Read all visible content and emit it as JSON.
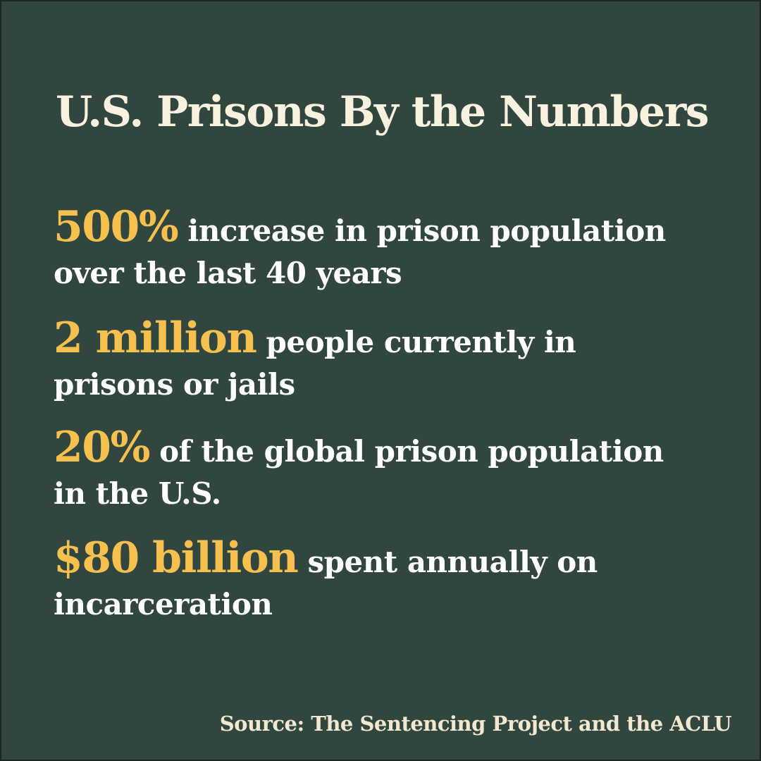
{
  "colors": {
    "background": "#31463e",
    "title": "#f8f1de",
    "highlight": "#f5c04e",
    "body_text": "#ffffff",
    "source": "#f1e8cf"
  },
  "title": "U.S. Prisons By the Numbers",
  "stats": [
    {
      "figure": "500%",
      "description": " increase in prison population over the last 40 years"
    },
    {
      "figure": "2 million",
      "description": " people currently in prisons or jails"
    },
    {
      "figure": "20%",
      "description": " of the global prison population in the U.S."
    },
    {
      "figure": "$80 billion",
      "description": " spent annually on incarceration"
    }
  ],
  "source": "Source:  The Sentencing Project and the ACLU"
}
